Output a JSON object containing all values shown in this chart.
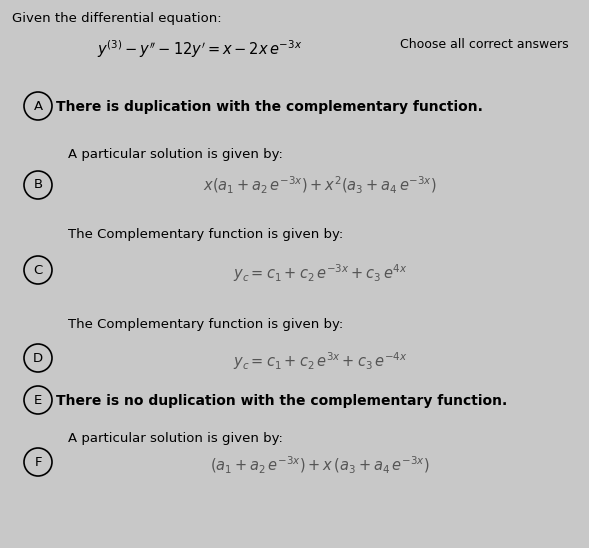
{
  "bg_color": "#c8c8c8",
  "title_line1": "Given the differential equation:",
  "choose_text": "Choose all correct answers",
  "labels": [
    "A",
    "B",
    "C",
    "D",
    "E",
    "F"
  ],
  "above_texts": [
    null,
    "A particular solution is given by:",
    "The Complementary function is given by:",
    "The Complementary function is given by:",
    null,
    "A particular solution is given by:"
  ],
  "bold_texts": [
    "There is duplication with the complementary function.",
    null,
    null,
    null,
    "There is no duplication with the complementary function.",
    null
  ],
  "math_eqs": [
    null,
    "x(a_1+a_2\\,e^{-3x})+x^2(a_3+a_4\\,e^{-3x})",
    "y_c=c_1+c_2\\,e^{-3x}+c_3\\,e^{4x}",
    "y_c=c_1+c_2\\,e^{3x}+c_3\\,e^{-4x}",
    null,
    "(a_1+a_2\\,e^{-3x})+x\\,(a_3+a_4\\,e^{-3x})"
  ]
}
